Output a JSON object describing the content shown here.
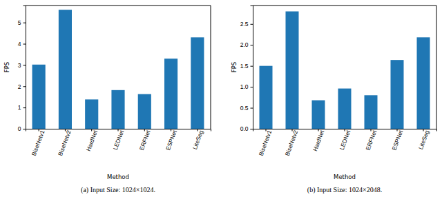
{
  "chart_data": [
    {
      "type": "bar",
      "title": "(a) Input Size: 1024×1024.",
      "x_label": "Method",
      "y_label": "FPS",
      "categories": [
        "BiseNetv1",
        "BiseNetv2",
        "HardNet",
        "LEDNet",
        "ERFNet",
        "ESPNet",
        "LiteSeg"
      ],
      "values": [
        3.02,
        5.6,
        1.38,
        1.82,
        1.63,
        3.3,
        4.3
      ],
      "color": "#1f77b4",
      "ylim": [
        0,
        5.8
      ],
      "yticks": [
        0,
        1,
        2,
        3,
        4,
        5
      ],
      "grid": false
    },
    {
      "type": "bar",
      "title": "(b) Input Size: 1024×2048.",
      "x_label": "Method",
      "y_label": "FPS",
      "categories": [
        "BiseNetv1",
        "BiseNetv2",
        "HardNet",
        "LEDNet",
        "ERFNet",
        "ESPNet",
        "LiteSeg"
      ],
      "values": [
        1.5,
        2.8,
        0.68,
        0.96,
        0.8,
        1.64,
        2.18
      ],
      "color": "#1f77b4",
      "ylim": [
        0,
        2.94
      ],
      "yticks": [
        {
          "value": 0,
          "label": "0.0"
        },
        {
          "value": 0.5,
          "label": "0.5"
        },
        {
          "value": 1,
          "label": "1.0"
        },
        {
          "value": 1.5,
          "label": "1.5"
        },
        {
          "value": 2,
          "label": "2.0"
        },
        {
          "value": 2.5,
          "label": "2.5"
        }
      ],
      "grid": false
    }
  ]
}
